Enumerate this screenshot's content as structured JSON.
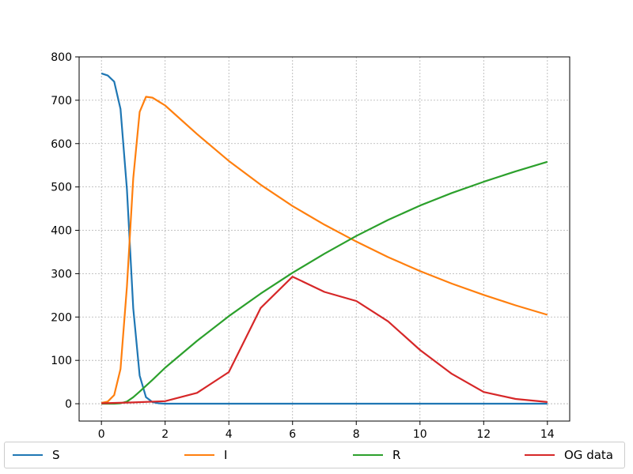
{
  "chart_data": {
    "type": "line",
    "title": "",
    "xlabel": "",
    "ylabel": "",
    "xlim": [
      -0.7,
      14.7
    ],
    "ylim": [
      -40,
      800
    ],
    "xticks": [
      0,
      2,
      4,
      6,
      8,
      10,
      12,
      14
    ],
    "yticks": [
      0,
      100,
      200,
      300,
      400,
      500,
      600,
      700,
      800
    ],
    "grid": true,
    "legend_position": "bottom",
    "series": [
      {
        "name": "S",
        "color": "#1f77b4",
        "x": [
          0,
          0.2,
          0.4,
          0.6,
          0.8,
          1.0,
          1.2,
          1.4,
          1.6,
          1.8,
          2.0,
          4,
          6,
          8,
          10,
          12,
          14
        ],
        "y": [
          762,
          757,
          743,
          680,
          495,
          220,
          65,
          15,
          4,
          1,
          0,
          0,
          0,
          0,
          0,
          0,
          0
        ]
      },
      {
        "name": "I",
        "color": "#ff7f0e",
        "x": [
          0,
          0.2,
          0.4,
          0.6,
          0.8,
          1.0,
          1.2,
          1.4,
          1.6,
          1.8,
          2,
          3,
          4,
          5,
          6,
          7,
          8,
          9,
          10,
          11,
          12,
          13,
          14
        ],
        "y": [
          2,
          5,
          20,
          80,
          270,
          520,
          673,
          708,
          706,
          697,
          688,
          622,
          560,
          505,
          456,
          413,
          374,
          338,
          306,
          277,
          251,
          227,
          205
        ]
      },
      {
        "name": "R",
        "color": "#2ca02c",
        "x": [
          0,
          0.4,
          0.6,
          0.8,
          1.0,
          1.2,
          1.6,
          2,
          3,
          4,
          5,
          6,
          7,
          8,
          9,
          10,
          11,
          12,
          13,
          14
        ],
        "y": [
          0,
          0,
          1,
          5,
          15,
          28,
          55,
          83,
          145,
          202,
          254,
          302,
          346,
          387,
          424,
          457,
          486,
          512,
          536,
          558
        ]
      },
      {
        "name": "OG data",
        "color": "#d62728",
        "x": [
          0,
          1,
          2,
          3,
          4,
          5,
          6,
          7,
          8,
          9,
          10,
          11,
          12,
          13,
          14
        ],
        "y": [
          1,
          3,
          6,
          25,
          73,
          221,
          293,
          258,
          237,
          190,
          124,
          69,
          27,
          11,
          4
        ]
      }
    ]
  }
}
